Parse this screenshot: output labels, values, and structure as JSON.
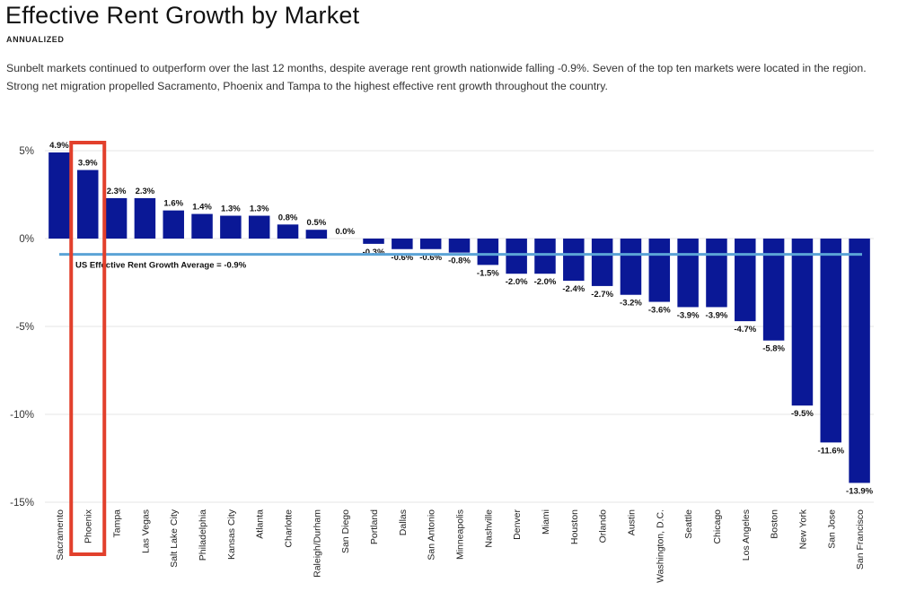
{
  "header": {
    "title": "Effective Rent Growth by Market",
    "subtitle": "ANNUALIZED",
    "description": "Sunbelt markets continued to outperform over the last 12 months, despite average rent growth nationwide falling -0.9%. Seven of the top ten markets were located in the region. Strong net migration propelled Sacramento, Phoenix and Tampa to the highest effective rent growth throughout the country."
  },
  "chart_data": {
    "type": "bar",
    "categories": [
      "Sacramento",
      "Phoenix",
      "Tampa",
      "Las Vegas",
      "Salt Lake City",
      "Philadelphia",
      "Kansas City",
      "Atlanta",
      "Charlotte",
      "Raleigh/Durham",
      "San Diego",
      "Portland",
      "Dallas",
      "San Antonio",
      "Minneapolis",
      "Nashville",
      "Denver",
      "Miami",
      "Houston",
      "Orlando",
      "Austin",
      "Washington, D.C.",
      "Seattle",
      "Chicago",
      "Los Angeles",
      "Boston",
      "New York",
      "San Jose",
      "San Francisco"
    ],
    "values": [
      4.9,
      3.9,
      2.3,
      2.3,
      1.6,
      1.4,
      1.3,
      1.3,
      0.8,
      0.5,
      0.0,
      -0.3,
      -0.6,
      -0.6,
      -0.8,
      -1.5,
      -2.0,
      -2.0,
      -2.4,
      -2.7,
      -3.2,
      -3.6,
      -3.9,
      -3.9,
      -4.7,
      -5.8,
      -9.5,
      -11.6,
      -13.9
    ],
    "value_labels": [
      "4.9%",
      "3.9%",
      "2.3%",
      "2.3%",
      "1.6%",
      "1.4%",
      "1.3%",
      "1.3%",
      "0.8%",
      "0.5%",
      "0.0%",
      "-0.3%",
      "-0.6%",
      "-0.6%",
      "-0.8%",
      "-1.5%",
      "-2.0%",
      "-2.0%",
      "-2.4%",
      "-2.7%",
      "-3.2%",
      "-3.6%",
      "-3.9%",
      "-3.9%",
      "-4.7%",
      "-5.8%",
      "-9.5%",
      "-11.6%",
      "-13.9%"
    ],
    "yticks": [
      5,
      0,
      -5,
      -10,
      -15
    ],
    "ytick_labels": [
      "5%",
      "0%",
      "-5%",
      "-10%",
      "-15%"
    ],
    "ylim": [
      -15,
      5
    ],
    "grid": true,
    "reference_line": {
      "value": -0.9,
      "label": "US Effective Rent Growth Average = -0.9%"
    },
    "highlight": {
      "category": "Phoenix"
    },
    "colors": {
      "bar": "#0a1896",
      "average_line": "#5ba3d6",
      "highlight": "#e2402c",
      "grid": "#e6e6e6"
    }
  }
}
